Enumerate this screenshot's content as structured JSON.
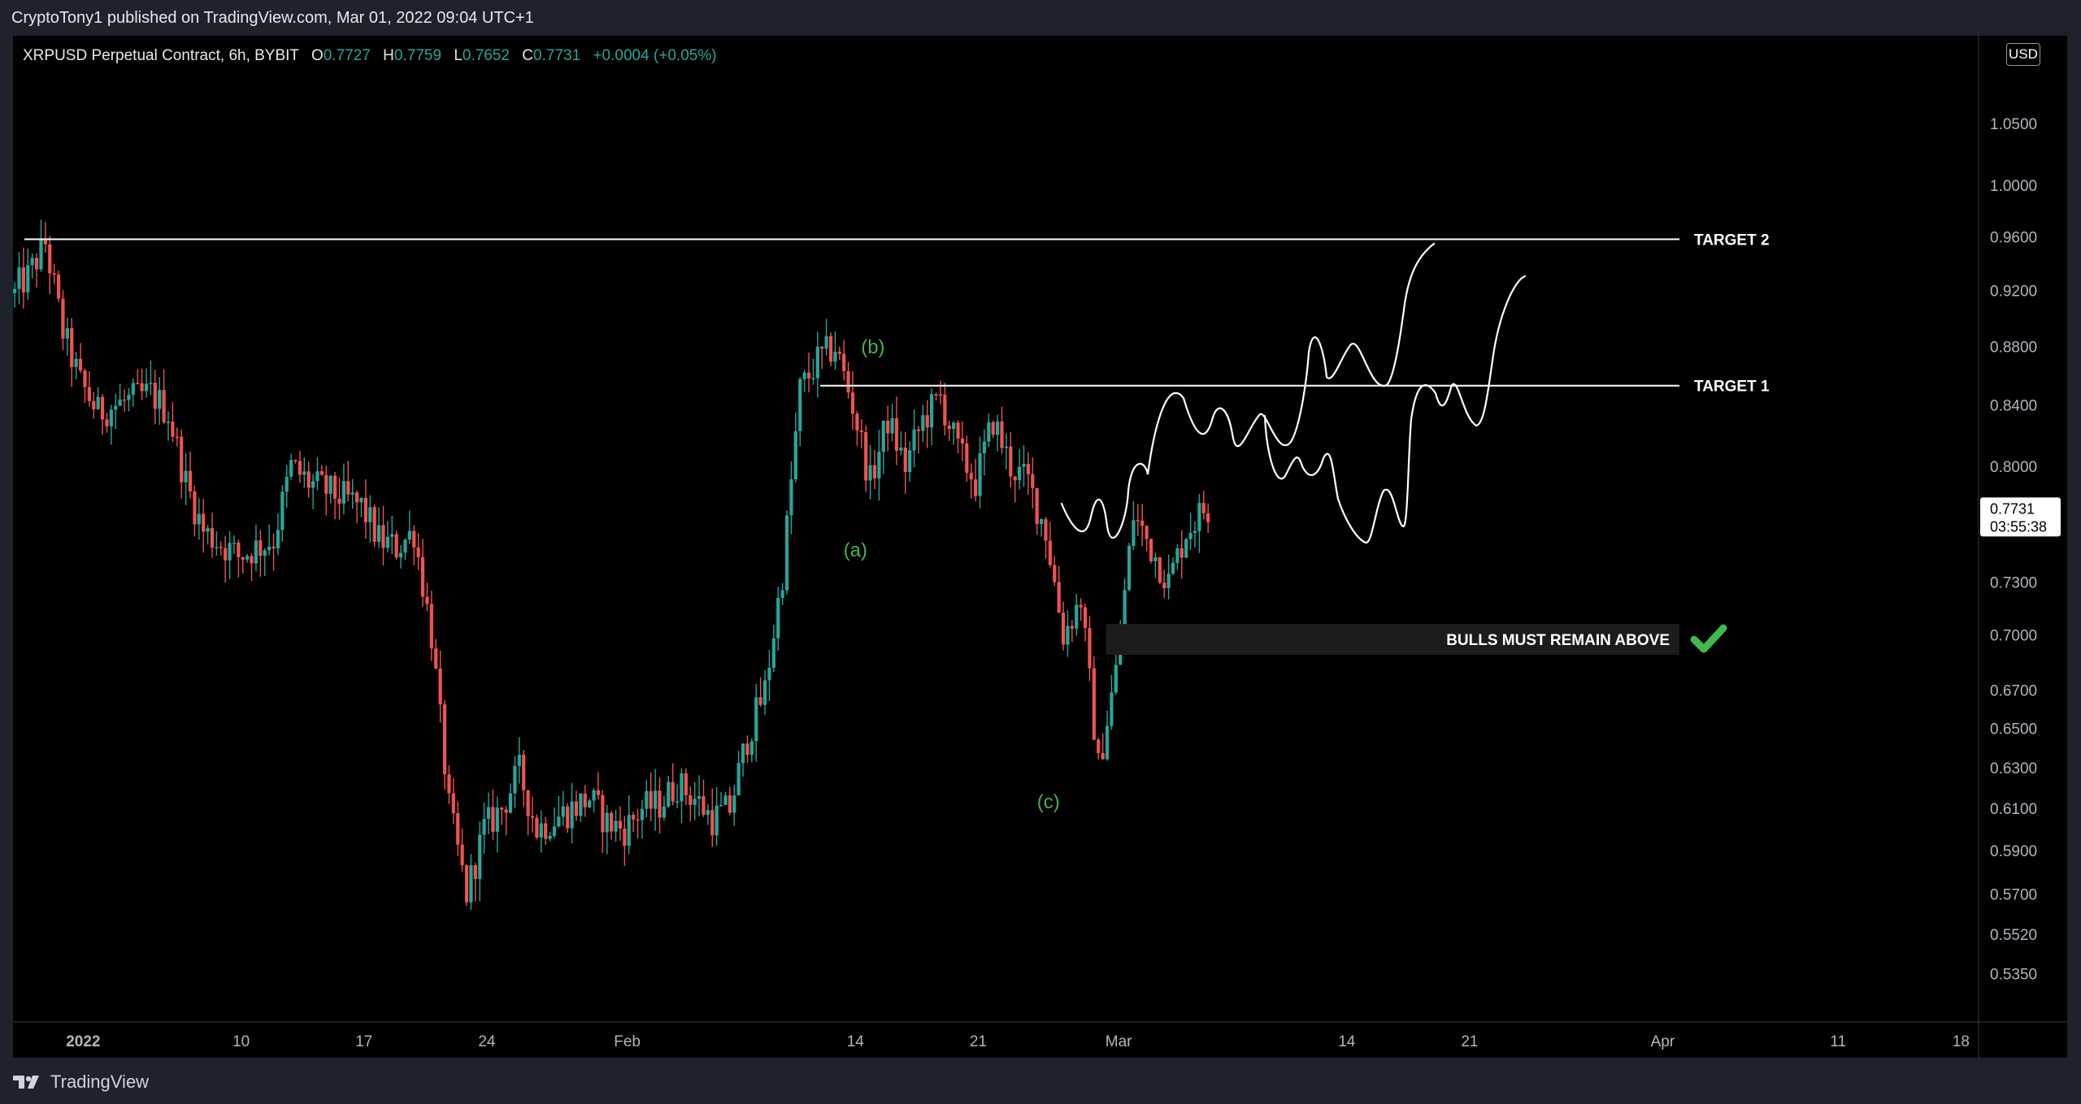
{
  "header": {
    "publisher_line": "CryptoTony1 published on TradingView.com, Mar 01, 2022 09:04 UTC+1"
  },
  "legend": {
    "symbol": "XRPUSD Perpetual Contract, 6h, BYBIT",
    "open_label": "O",
    "open_value": "0.7727",
    "high_label": "H",
    "high_value": "0.7759",
    "low_label": "L",
    "low_value": "0.7652",
    "close_label": "C",
    "close_value": "0.7731",
    "change": "+0.0004 (+0.05%)"
  },
  "currency_badge": "USD",
  "footer": {
    "brand": "TradingView"
  },
  "colors": {
    "background": "#000000",
    "frame": "#1e222d",
    "bull_candle": "#26a69a",
    "bear_candle": "#ef5350",
    "wave_label": "#4caf50",
    "check_mark": "#3fb950"
  },
  "chart_data": {
    "type": "candlestick",
    "symbol": "XRPUSD",
    "interval": "6h",
    "exchange": "BYBIT",
    "y_scale": "log",
    "ylim": [
      0.527,
      1.11
    ],
    "y_ticks": [
      "1.0500",
      "1.0000",
      "0.9600",
      "0.9200",
      "0.8800",
      "0.8400",
      "0.8000",
      "0.7300",
      "0.7000",
      "0.6700",
      "0.6500",
      "0.6300",
      "0.6100",
      "0.5900",
      "0.5700",
      "0.5520",
      "0.5350"
    ],
    "x_range": [
      "2021-12-28",
      "2022-04-19"
    ],
    "x_ticks": [
      {
        "date": "2022-01-01",
        "label": "2022"
      },
      {
        "date": "2022-01-10",
        "label": "10"
      },
      {
        "date": "2022-01-17",
        "label": "17"
      },
      {
        "date": "2022-01-24",
        "label": "24"
      },
      {
        "date": "2022-02-01",
        "label": "Feb"
      },
      {
        "date": "2022-02-14",
        "label": "14"
      },
      {
        "date": "2022-02-21",
        "label": "21"
      },
      {
        "date": "2022-03-01",
        "label": "Mar"
      },
      {
        "date": "2022-03-14",
        "label": "14"
      },
      {
        "date": "2022-03-21",
        "label": "21"
      },
      {
        "date": "2022-04-01",
        "label": "Apr"
      },
      {
        "date": "2022-04-11",
        "label": "11"
      },
      {
        "date": "2022-04-18",
        "label": "18"
      }
    ],
    "price_path": [
      {
        "date": "2021-12-28",
        "price": 0.918
      },
      {
        "date": "2021-12-29",
        "price": 0.93
      },
      {
        "date": "2021-12-30",
        "price": 0.955
      },
      {
        "date": "2021-12-31",
        "price": 0.89
      },
      {
        "date": "2022-01-01",
        "price": 0.855
      },
      {
        "date": "2022-01-02",
        "price": 0.835
      },
      {
        "date": "2022-01-03",
        "price": 0.84
      },
      {
        "date": "2022-01-05",
        "price": 0.848
      },
      {
        "date": "2022-01-06",
        "price": 0.835
      },
      {
        "date": "2022-01-07",
        "price": 0.79
      },
      {
        "date": "2022-01-08",
        "price": 0.76
      },
      {
        "date": "2022-01-10",
        "price": 0.745
      },
      {
        "date": "2022-01-12",
        "price": 0.755
      },
      {
        "date": "2022-01-13",
        "price": 0.8
      },
      {
        "date": "2022-01-14",
        "price": 0.79
      },
      {
        "date": "2022-01-16",
        "price": 0.78
      },
      {
        "date": "2022-01-17",
        "price": 0.775
      },
      {
        "date": "2022-01-18",
        "price": 0.755
      },
      {
        "date": "2022-01-19",
        "price": 0.75
      },
      {
        "date": "2022-01-20",
        "price": 0.76
      },
      {
        "date": "2022-01-21",
        "price": 0.7
      },
      {
        "date": "2022-01-22",
        "price": 0.61
      },
      {
        "date": "2022-01-23",
        "price": 0.57
      },
      {
        "date": "2022-01-24",
        "price": 0.6
      },
      {
        "date": "2022-01-25",
        "price": 0.61
      },
      {
        "date": "2022-01-26",
        "price": 0.628
      },
      {
        "date": "2022-01-27",
        "price": 0.6
      },
      {
        "date": "2022-01-28",
        "price": 0.605
      },
      {
        "date": "2022-01-30",
        "price": 0.615
      },
      {
        "date": "2022-01-31",
        "price": 0.603
      },
      {
        "date": "2022-02-01",
        "price": 0.6
      },
      {
        "date": "2022-02-02",
        "price": 0.61
      },
      {
        "date": "2022-02-03",
        "price": 0.612
      },
      {
        "date": "2022-02-04",
        "price": 0.622
      },
      {
        "date": "2022-02-05",
        "price": 0.615
      },
      {
        "date": "2022-02-06",
        "price": 0.605
      },
      {
        "date": "2022-02-07",
        "price": 0.61
      },
      {
        "date": "2022-02-08",
        "price": 0.645
      },
      {
        "date": "2022-02-09",
        "price": 0.67
      },
      {
        "date": "2022-02-10",
        "price": 0.735
      },
      {
        "date": "2022-02-11",
        "price": 0.85
      },
      {
        "date": "2022-02-12",
        "price": 0.87
      },
      {
        "date": "2022-02-13",
        "price": 0.88
      },
      {
        "date": "2022-02-14",
        "price": 0.84
      },
      {
        "date": "2022-02-15",
        "price": 0.79
      },
      {
        "date": "2022-02-16",
        "price": 0.83
      },
      {
        "date": "2022-02-17",
        "price": 0.8
      },
      {
        "date": "2022-02-18",
        "price": 0.83
      },
      {
        "date": "2022-02-19",
        "price": 0.845
      },
      {
        "date": "2022-02-20",
        "price": 0.81
      },
      {
        "date": "2022-02-21",
        "price": 0.79
      },
      {
        "date": "2022-02-22",
        "price": 0.83
      },
      {
        "date": "2022-02-23",
        "price": 0.8
      },
      {
        "date": "2022-02-24",
        "price": 0.79
      },
      {
        "date": "2022-02-25",
        "price": 0.76
      },
      {
        "date": "2022-02-26",
        "price": 0.7
      },
      {
        "date": "2022-02-27",
        "price": 0.72
      },
      {
        "date": "2022-02-28",
        "price": 0.63
      },
      {
        "date": "2022-03-01",
        "price": 0.68
      },
      {
        "date": "2022-03-02",
        "price": 0.77
      },
      {
        "date": "2022-03-03",
        "price": 0.75
      },
      {
        "date": "2022-03-04",
        "price": 0.73
      },
      {
        "date": "2022-03-05",
        "price": 0.76
      },
      {
        "date": "2022-03-06",
        "price": 0.7731
      }
    ],
    "horizontal_lines": [
      {
        "label": "TARGET 2",
        "price": 0.958
      },
      {
        "label": "TARGET 1",
        "price": 0.853
      }
    ],
    "zones": [
      {
        "label": "BULLS MUST REMAIN ABOVE",
        "top": 0.706,
        "bottom": 0.689
      }
    ],
    "annotations": [
      {
        "text": "(a)",
        "date": "2022-02-14",
        "price": 0.745
      },
      {
        "text": "(b)",
        "date": "2022-02-15",
        "price": 0.875
      },
      {
        "text": "(c)",
        "date": "2022-02-25",
        "price": 0.61
      }
    ],
    "last_price_label": {
      "price": "0.7731",
      "countdown": "03:55:38"
    }
  }
}
